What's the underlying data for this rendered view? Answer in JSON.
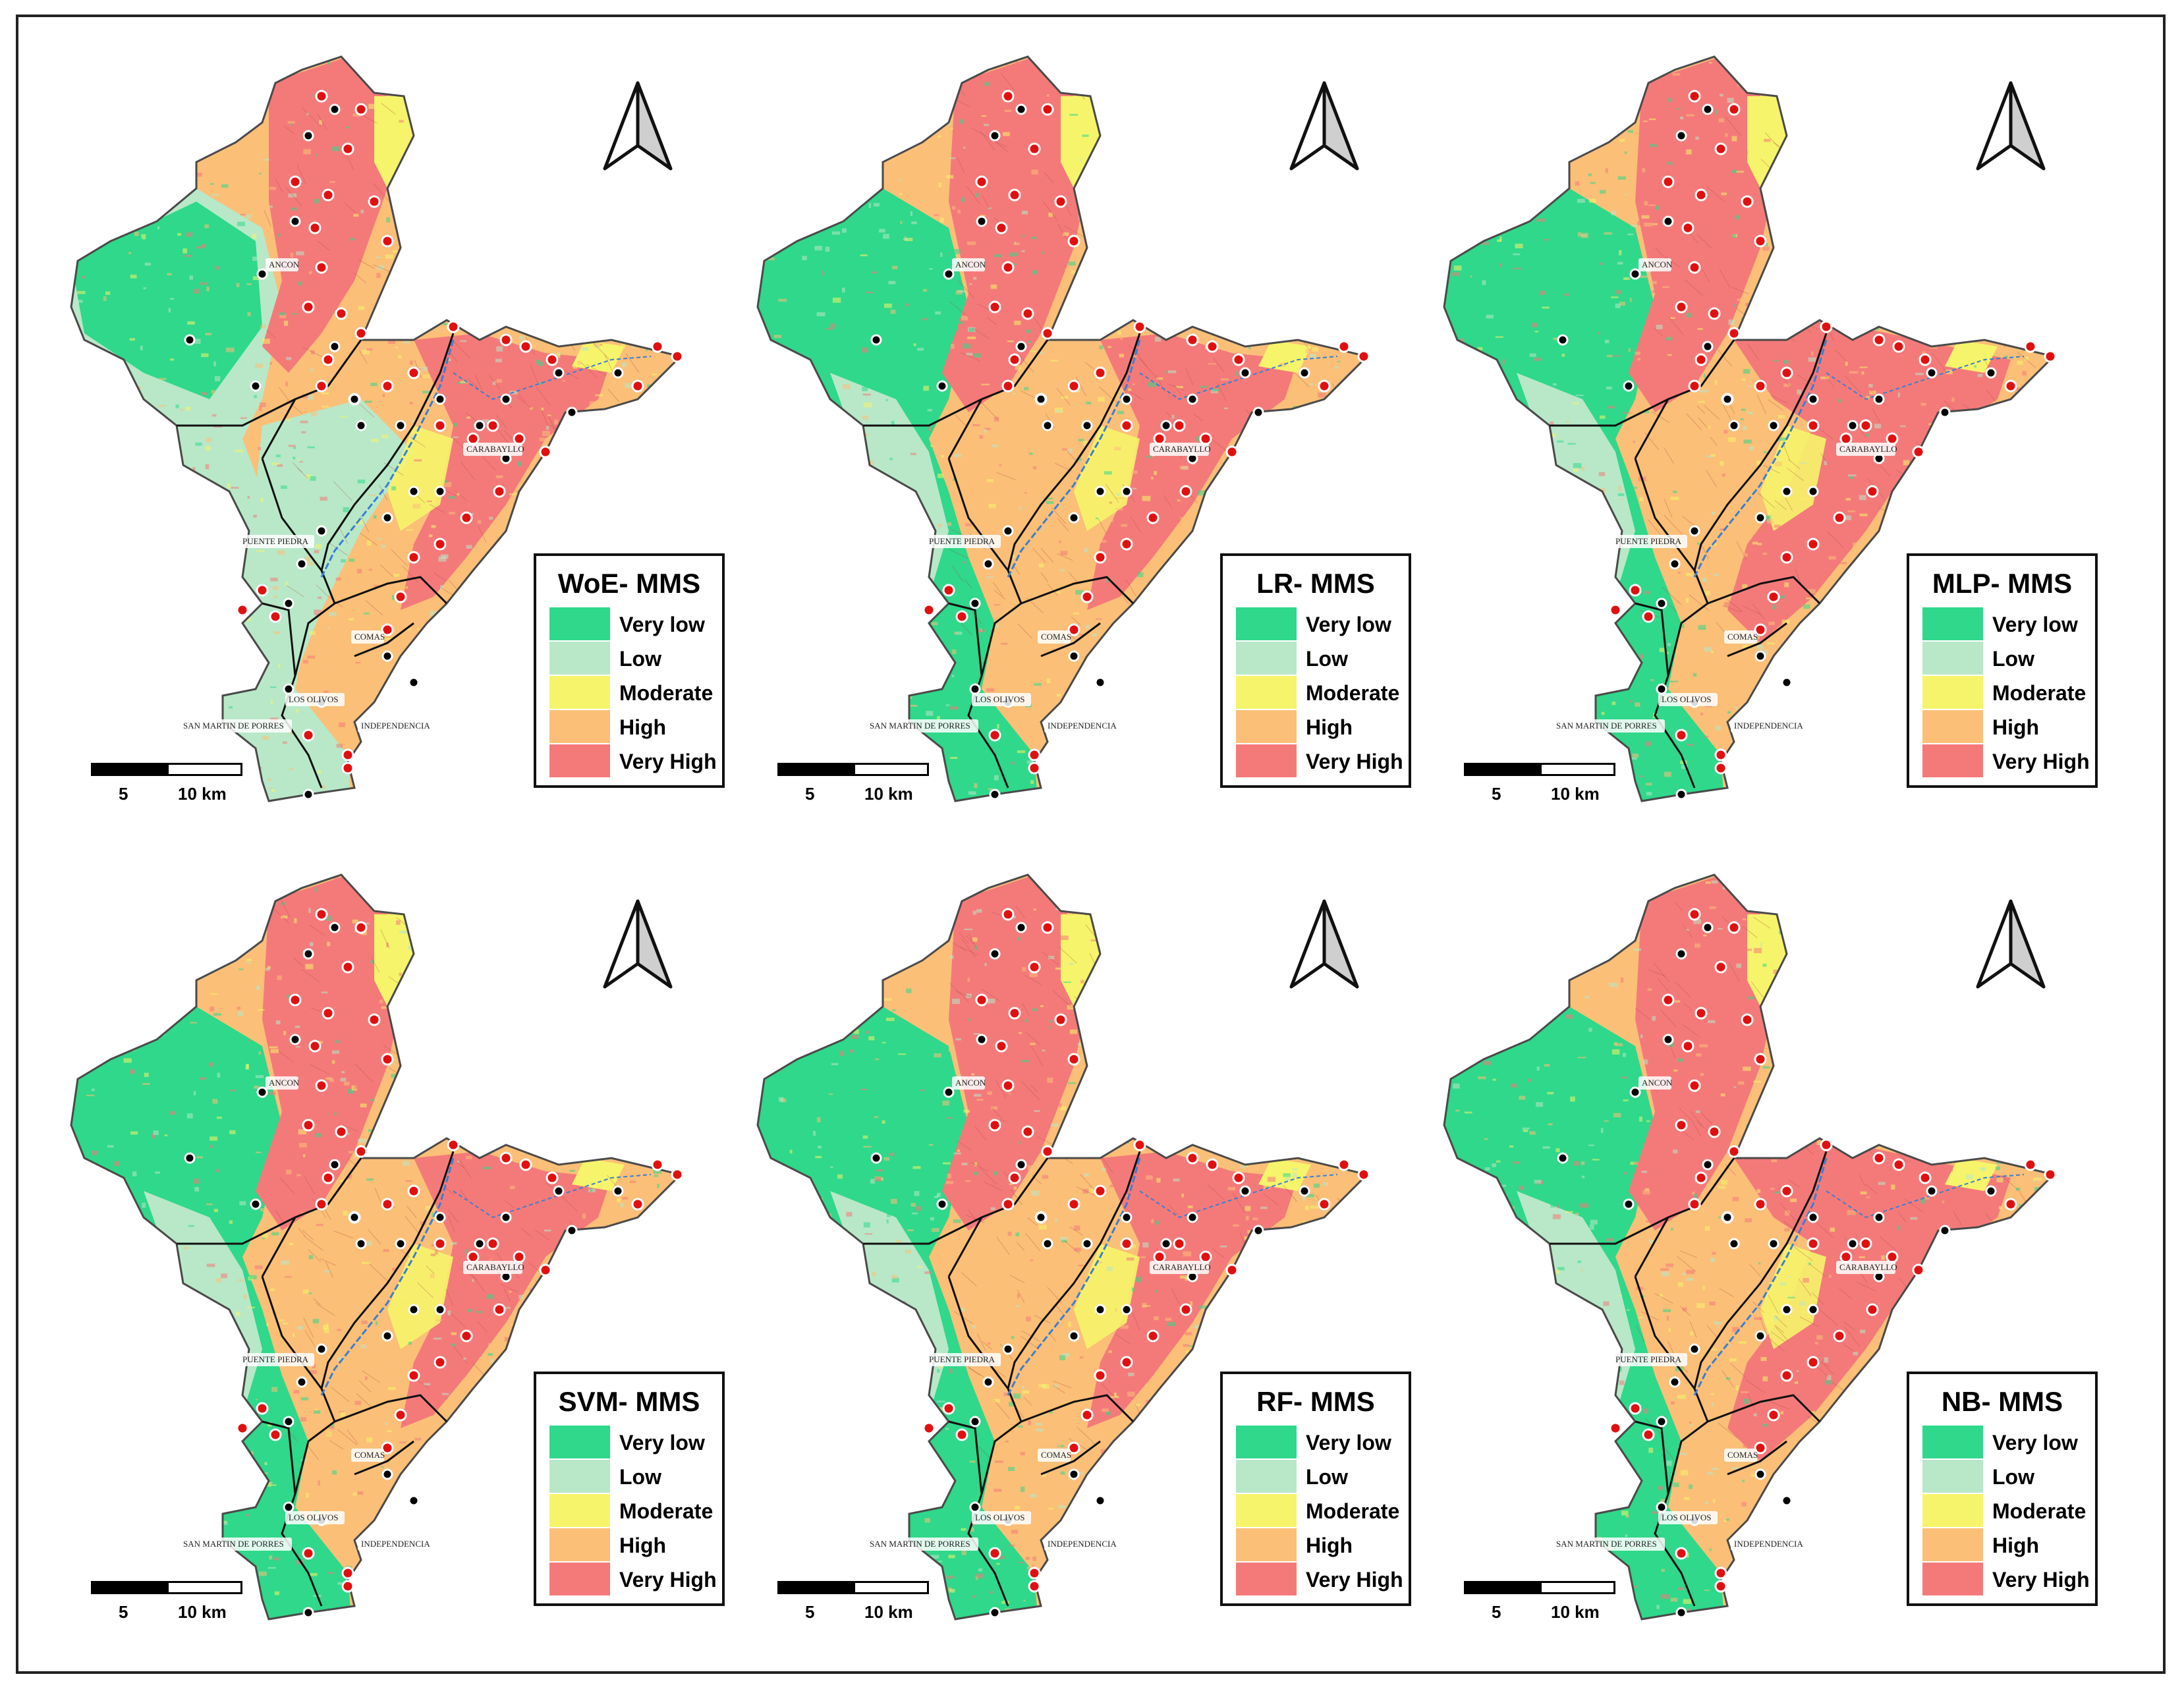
{
  "legend_classes": [
    {
      "label": "Very low",
      "color": "#2fd88a"
    },
    {
      "label": "Low",
      "color": "#b8e8c8"
    },
    {
      "label": "Moderate",
      "color": "#f6f46a"
    },
    {
      "label": "High",
      "color": "#fbbf78"
    },
    {
      "label": "Very High",
      "color": "#f47a7a"
    }
  ],
  "scale": {
    "left_label": "5",
    "right_label": "10 km"
  },
  "places": {
    "ancon": "ANCON",
    "carabayllo": "CARABAYLLO",
    "puente_piedra": "PUENTE PIEDRA",
    "comas": "COMAS",
    "los_olivos": "LOS OLIVOS",
    "san_martin": "SAN MARTIN DE PORRES",
    "independencia": "INDEPENDENCIA"
  },
  "panels": [
    {
      "title": "WoE- MMS",
      "dominant": "low"
    },
    {
      "title": "LR- MMS",
      "dominant": "mixed"
    },
    {
      "title": "MLP- MMS",
      "dominant": "high"
    },
    {
      "title": "SVM- MMS",
      "dominant": "mixed"
    },
    {
      "title": "RF- MMS",
      "dominant": "mixed"
    },
    {
      "title": "NB- MMS",
      "dominant": "high"
    }
  ],
  "point_symbols": {
    "landslide": "red-dot-white-ring",
    "non_landslide": "black-dot-white-ring"
  },
  "north_arrow": "north-arrow-icon"
}
